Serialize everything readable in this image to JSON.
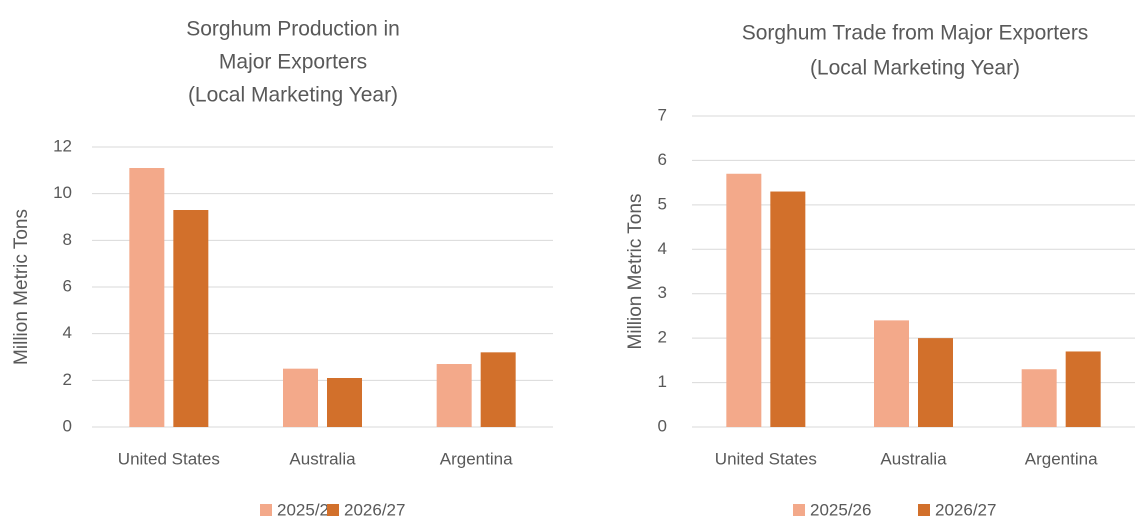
{
  "chart_data": [
    {
      "type": "bar",
      "title": [
        "Sorghum Production in",
        "Major Exporters",
        "(Local Marketing Year)"
      ],
      "y_label": "Million Metric Tons",
      "categories": [
        "United States",
        "Australia",
        "Argentina"
      ],
      "series": [
        {
          "name": "2025/26",
          "color": "#f3a98a",
          "values": [
            11.1,
            2.5,
            2.7
          ]
        },
        {
          "name": "2026/27",
          "color": "#d2702b",
          "values": [
            9.3,
            2.1,
            3.2
          ]
        }
      ],
      "ylim": [
        0,
        12
      ],
      "yticks": [
        0,
        2,
        4,
        6,
        8,
        10,
        12
      ],
      "grid": true,
      "legend": "bottom"
    },
    {
      "type": "bar",
      "title": [
        "Sorghum Trade from Major Exporters",
        "(Local Marketing Year)"
      ],
      "y_label": "Million Metric Tons",
      "categories": [
        "United States",
        "Australia",
        "Argentina"
      ],
      "series": [
        {
          "name": "2025/26",
          "color": "#f3a98a",
          "values": [
            5.7,
            2.4,
            1.3
          ]
        },
        {
          "name": "2026/27",
          "color": "#d2702b",
          "values": [
            5.3,
            2.0,
            1.7
          ]
        }
      ],
      "ylim": [
        0,
        7
      ],
      "yticks": [
        0,
        1,
        2,
        3,
        4,
        5,
        6,
        7
      ],
      "grid": true,
      "legend": "bottom"
    }
  ]
}
